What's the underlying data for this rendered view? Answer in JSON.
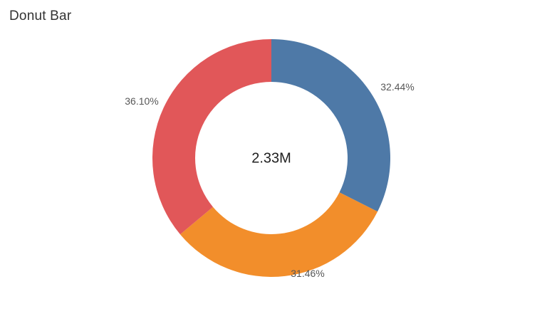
{
  "page": {
    "title": "Donut Bar",
    "background": "#ffffff"
  },
  "chart_data": {
    "type": "pie",
    "subtype": "donut",
    "title": "Donut Bar",
    "center_label": "2.33M",
    "start_angle_deg": 0,
    "direction": "clockwise",
    "inner_radius_ratio": 0.64,
    "legend": "none",
    "grid": "off",
    "segments": [
      {
        "label": "32.44%",
        "value": 32.44,
        "color": "#4e79a7"
      },
      {
        "label": "31.46%",
        "value": 31.46,
        "color": "#f28e2b"
      },
      {
        "label": "36.10%",
        "value": 36.1,
        "color": "#e15759"
      }
    ],
    "colors": {
      "title_text": "#333333",
      "segment_label_text": "#575757",
      "center_label_text": "#1f1f1f",
      "background": "#ffffff"
    }
  }
}
